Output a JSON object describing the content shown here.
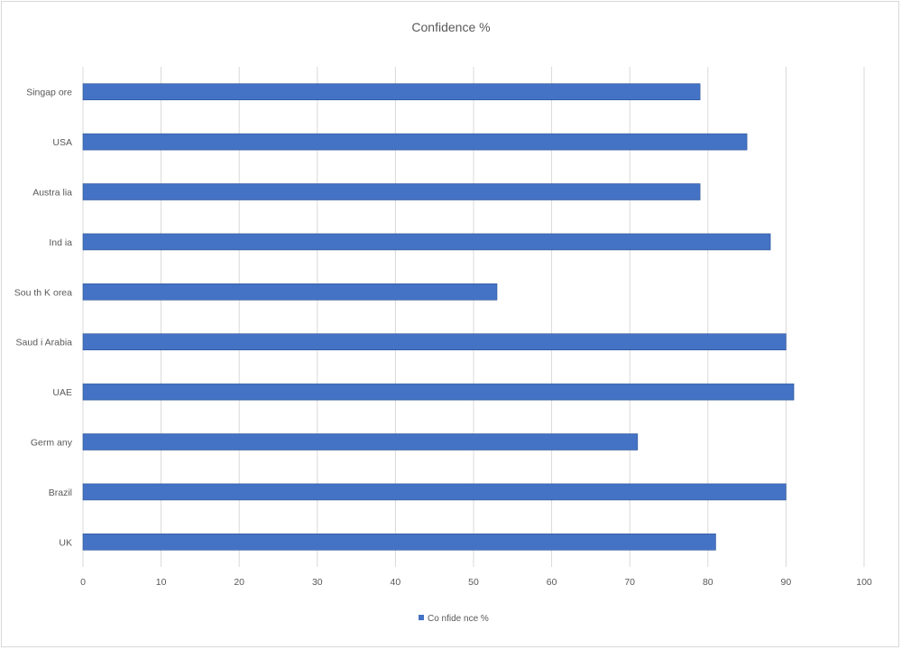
{
  "chart_data": {
    "type": "bar",
    "orientation": "horizontal",
    "title": "Confidence %",
    "xlabel": "",
    "ylabel": "",
    "categories": [
      "Singap ore",
      "USA",
      "Austra lia",
      "Ind ia",
      "Sou th K orea",
      "Saud i Arabia",
      "UAE",
      "Germ any",
      "Brazil",
      "UK"
    ],
    "series": [
      {
        "name": "Co nfide nce %",
        "values": [
          79,
          85,
          79,
          88,
          53,
          90,
          91,
          71,
          90,
          81
        ]
      }
    ],
    "xlim": [
      0,
      100
    ],
    "xticks": [
      "0",
      "10",
      "20",
      "30",
      "40",
      "50",
      "60",
      "70",
      "80",
      "90",
      "100"
    ],
    "grid": true,
    "legend": "bottom"
  },
  "colors": {
    "bar": "#4472c4",
    "bar_edge": "#2f5597",
    "grid": "#d9d9d9",
    "text": "#595959"
  }
}
